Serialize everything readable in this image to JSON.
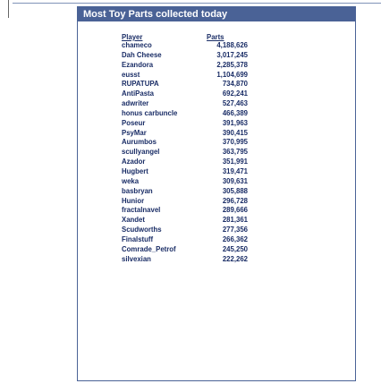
{
  "title": "Most Toy Parts collected today",
  "columns": {
    "player": "Player",
    "parts": "Parts"
  },
  "rows": [
    {
      "player": "chameco",
      "parts": "4,188,626"
    },
    {
      "player": "Dah Cheese",
      "parts": "3,017,245"
    },
    {
      "player": "Ezandora",
      "parts": "2,285,378"
    },
    {
      "player": "eusst",
      "parts": "1,104,699"
    },
    {
      "player": "RUPATUPA",
      "parts": "734,870"
    },
    {
      "player": "AntiPasta",
      "parts": "692,241"
    },
    {
      "player": "adwriter",
      "parts": "527,463"
    },
    {
      "player": "honus carbuncle",
      "parts": "466,389"
    },
    {
      "player": "Poseur",
      "parts": "391,963"
    },
    {
      "player": "PsyMar",
      "parts": "390,415"
    },
    {
      "player": "Aurumbos",
      "parts": "370,995"
    },
    {
      "player": "scullyangel",
      "parts": "363,795"
    },
    {
      "player": "Azador",
      "parts": "351,991"
    },
    {
      "player": "Hugbert",
      "parts": "319,471"
    },
    {
      "player": "weka",
      "parts": "309,631"
    },
    {
      "player": "basbryan",
      "parts": "305,888"
    },
    {
      "player": "Hunior",
      "parts": "296,728"
    },
    {
      "player": "fractalnavel",
      "parts": "289,666"
    },
    {
      "player": "Xandet",
      "parts": "281,361"
    },
    {
      "player": "Scudworths",
      "parts": "277,356"
    },
    {
      "player": "Finalstuff",
      "parts": "266,362"
    },
    {
      "player": "Comrade_Petrof",
      "parts": "245,250"
    },
    {
      "player": "silvexian",
      "parts": "222,262"
    }
  ]
}
